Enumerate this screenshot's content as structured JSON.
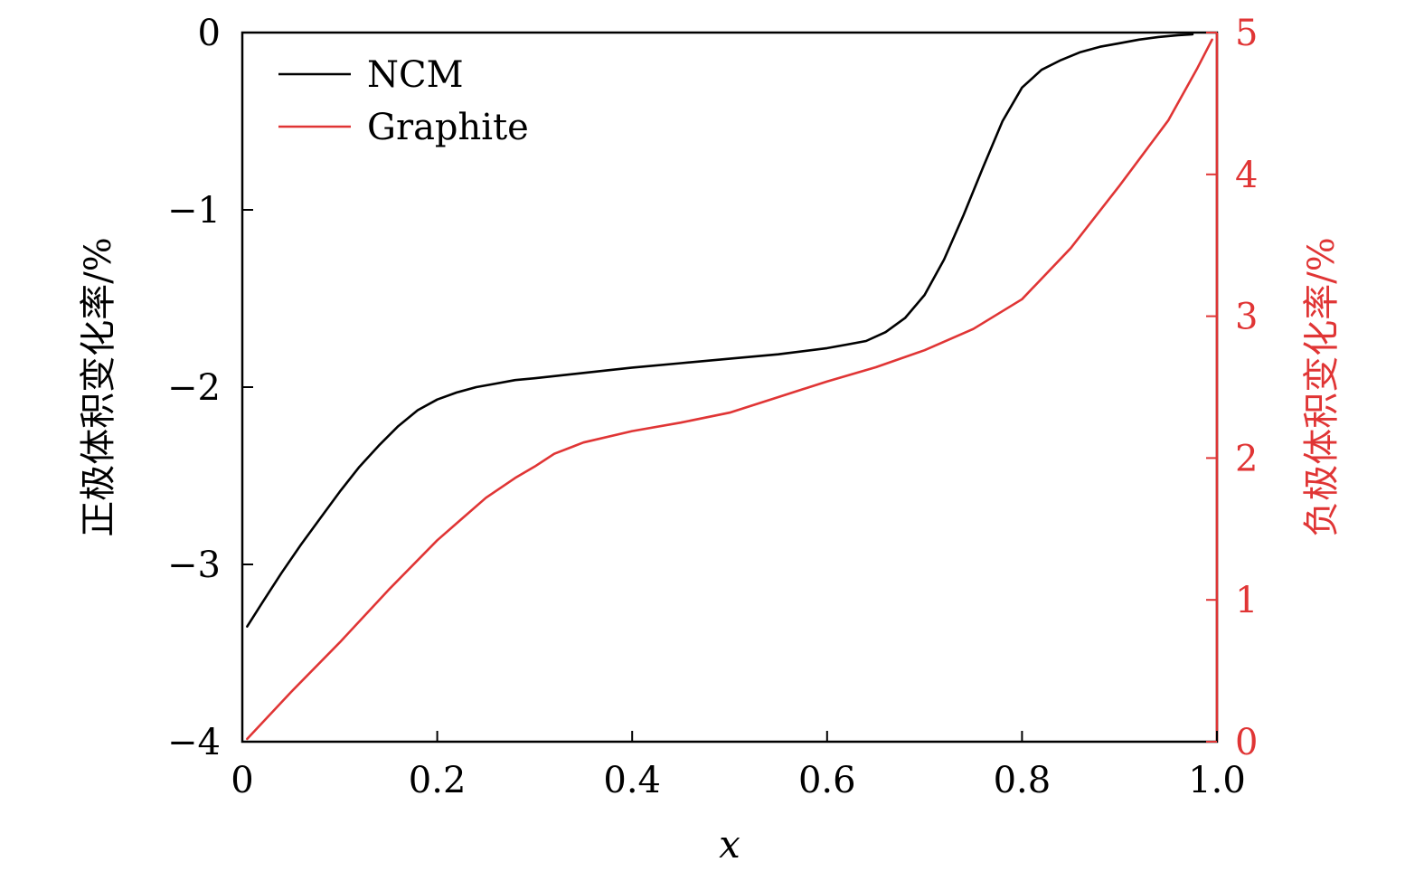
{
  "chart_data": {
    "type": "line",
    "xlabel": "x",
    "ylabel_left": "正极体积变化率/%",
    "ylabel_right": "负极体积变化率/%",
    "xlim": [
      0,
      1.0
    ],
    "ylim_left": [
      -4,
      0
    ],
    "ylim_right": [
      0,
      5
    ],
    "x_ticks": [
      0,
      0.2,
      0.4,
      0.6,
      0.8,
      1.0
    ],
    "x_tick_labels": [
      "0",
      "0.2",
      "0.4",
      "0.6",
      "0.8",
      "1.0"
    ],
    "y_left_ticks": [
      0,
      -1,
      -2,
      -3,
      -4
    ],
    "y_left_tick_labels": [
      "0",
      "−1",
      "−2",
      "−3",
      "−4"
    ],
    "y_right_ticks": [
      5,
      4,
      3,
      2,
      1,
      0
    ],
    "y_right_tick_labels": [
      "5",
      "4",
      "3",
      "2",
      "1",
      "0"
    ],
    "grid": false,
    "legend_position": "top-left",
    "colors": {
      "ncm": "#000000",
      "graphite": "#e03535",
      "right_axis": "#e03535"
    },
    "series": [
      {
        "name": "NCM",
        "axis": "left",
        "x": [
          0.005,
          0.02,
          0.04,
          0.06,
          0.08,
          0.1,
          0.12,
          0.14,
          0.16,
          0.18,
          0.2,
          0.22,
          0.24,
          0.26,
          0.28,
          0.3,
          0.35,
          0.4,
          0.45,
          0.5,
          0.55,
          0.6,
          0.62,
          0.64,
          0.66,
          0.68,
          0.7,
          0.72,
          0.74,
          0.76,
          0.78,
          0.8,
          0.82,
          0.84,
          0.86,
          0.88,
          0.9,
          0.92,
          0.94,
          0.96,
          0.975
        ],
        "y": [
          -3.35,
          -3.22,
          -3.05,
          -2.89,
          -2.74,
          -2.59,
          -2.45,
          -2.33,
          -2.22,
          -2.13,
          -2.07,
          -2.03,
          -2.0,
          -1.98,
          -1.96,
          -1.95,
          -1.92,
          -1.89,
          -1.865,
          -1.84,
          -1.815,
          -1.78,
          -1.76,
          -1.74,
          -1.69,
          -1.61,
          -1.48,
          -1.28,
          -1.03,
          -0.76,
          -0.5,
          -0.31,
          -0.21,
          -0.155,
          -0.11,
          -0.08,
          -0.06,
          -0.04,
          -0.025,
          -0.015,
          -0.01
        ]
      },
      {
        "name": "Graphite",
        "axis": "right",
        "x": [
          0.005,
          0.05,
          0.1,
          0.15,
          0.2,
          0.25,
          0.28,
          0.3,
          0.32,
          0.35,
          0.4,
          0.45,
          0.5,
          0.55,
          0.6,
          0.65,
          0.7,
          0.75,
          0.8,
          0.85,
          0.9,
          0.95,
          0.98,
          0.995
        ],
        "y": [
          0.02,
          0.35,
          0.7,
          1.07,
          1.42,
          1.72,
          1.86,
          1.94,
          2.03,
          2.11,
          2.19,
          2.25,
          2.32,
          2.43,
          2.54,
          2.64,
          2.76,
          2.91,
          3.12,
          3.48,
          3.92,
          4.38,
          4.75,
          4.95
        ]
      }
    ]
  }
}
